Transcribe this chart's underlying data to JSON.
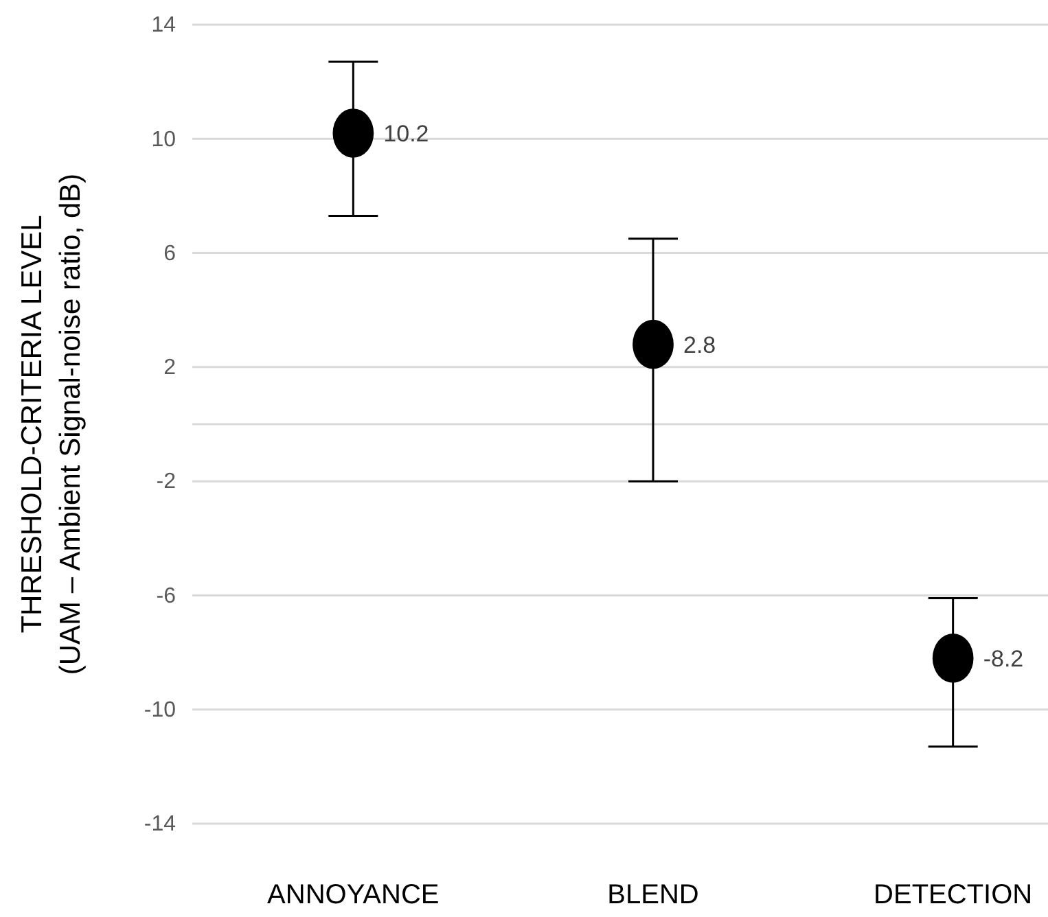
{
  "chart_data": {
    "type": "scatter",
    "ylabel": "THRESHOLD-CRITERIA LEVEL\n(UAM – Ambient Signal-noise ratio, dB)",
    "categories": [
      "ANNOYANCE",
      "BLEND",
      "DETECTION"
    ],
    "series": [
      {
        "color": "#000000",
        "values": [
          10.2,
          2.8,
          -8.2
        ],
        "errors": [
          [
            7.3,
            12.7
          ],
          [
            -2.0,
            6.5
          ],
          [
            -11.3,
            -6.1
          ]
        ]
      }
    ],
    "data_labels": true,
    "marker": "circle",
    "grid": "y",
    "ylim": [
      -14,
      14
    ],
    "yticks": [
      14,
      10,
      6,
      2,
      -2,
      -6,
      -10,
      -14
    ]
  }
}
